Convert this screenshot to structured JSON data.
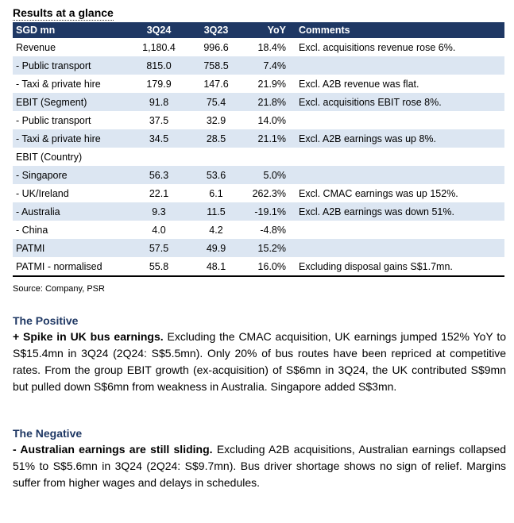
{
  "title": "Results at a glance",
  "table": {
    "headers": [
      "SGD mn",
      "3Q24",
      "3Q23",
      "YoY",
      "Comments"
    ],
    "rows": [
      {
        "label": "Revenue",
        "q324": "1,180.4",
        "q323": "996.6",
        "yoy": "18.4%",
        "comment": "Excl. acquisitions revenue rose 6%."
      },
      {
        "label": " - Public transport",
        "q324": "815.0",
        "q323": "758.5",
        "yoy": "7.4%",
        "comment": ""
      },
      {
        "label": " - Taxi & private hire",
        "q324": "179.9",
        "q323": "147.6",
        "yoy": "21.9%",
        "comment": "Excl. A2B revenue was flat."
      },
      {
        "label": "EBIT (Segment)",
        "q324": "91.8",
        "q323": "75.4",
        "yoy": "21.8%",
        "comment": "Excl. acquisitions EBIT rose 8%."
      },
      {
        "label": " - Public transport",
        "q324": "37.5",
        "q323": "32.9",
        "yoy": "14.0%",
        "comment": ""
      },
      {
        "label": " - Taxi & private hire",
        "q324": "34.5",
        "q323": "28.5",
        "yoy": "21.1%",
        "comment": "Excl. A2B earnings was up 8%."
      },
      {
        "label": "EBIT (Country)",
        "q324": "",
        "q323": "",
        "yoy": "",
        "comment": ""
      },
      {
        "label": " - Singapore",
        "q324": "56.3",
        "q323": "53.6",
        "yoy": "5.0%",
        "comment": ""
      },
      {
        "label": " - UK/Ireland",
        "q324": "22.1",
        "q323": "6.1",
        "yoy": "262.3%",
        "comment": "Excl. CMAC earnings was up 152%."
      },
      {
        "label": " - Australia",
        "q324": "9.3",
        "q323": "11.5",
        "yoy": "-19.1%",
        "comment": "Excl. A2B earnings was down 51%."
      },
      {
        "label": " - China",
        "q324": "4.0",
        "q323": "4.2",
        "yoy": "-4.8%",
        "comment": ""
      },
      {
        "label": "PATMI",
        "q324": "57.5",
        "q323": "49.9",
        "yoy": "15.2%",
        "comment": ""
      },
      {
        "label": "PATMI - normalised",
        "q324": "55.8",
        "q323": "48.1",
        "yoy": "16.0%",
        "comment": "Excluding disposal gains S$1.7mn."
      }
    ]
  },
  "source": "Source: Company, PSR",
  "positive": {
    "heading": "The Positive",
    "lead": "+ Spike in UK bus earnings.",
    "body": " Excluding the CMAC acquisition, UK earnings jumped 152% YoY to S$15.4mn in 3Q24 (2Q24: S$5.5mn). Only 20% of bus routes have been repriced at competitive rates. From the group EBIT growth (ex-acquisition) of S$6mn in 3Q24, the UK contributed S$9mn but pulled down S$6mn from weakness in Australia. Singapore added S$3mn."
  },
  "negative": {
    "heading": "The Negative",
    "lead": "- Australian earnings are still sliding.",
    "body": " Excluding A2B acquisitions, Australian earnings collapsed 51% to S$5.6mn in 3Q24 (2Q24: S$9.7mn). Bus driver shortage shows no sign of relief. Margins suffer from higher wages and delays in schedules."
  }
}
